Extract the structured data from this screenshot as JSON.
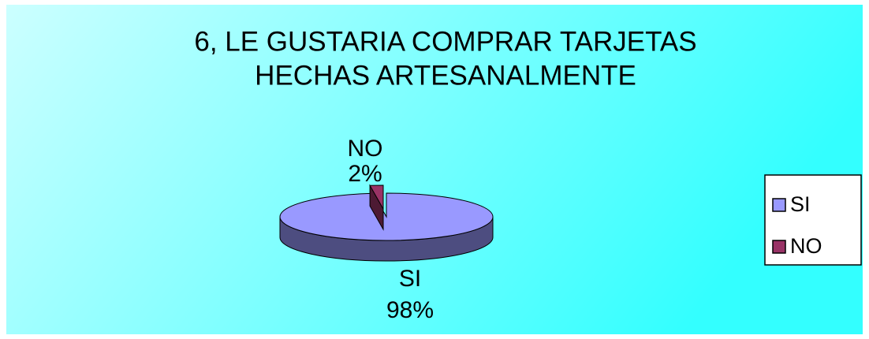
{
  "chart_data": {
    "type": "pie",
    "title": [
      "6, LE GUSTARIA COMPRAR TARJETAS",
      "HECHAS ARTESANALMENTE"
    ],
    "categories": [
      "SI",
      "NO"
    ],
    "values": [
      98,
      2
    ],
    "value_labels": [
      "98%",
      "2%"
    ],
    "colors": [
      "#9999ff",
      "#993366"
    ],
    "legend": "right"
  }
}
